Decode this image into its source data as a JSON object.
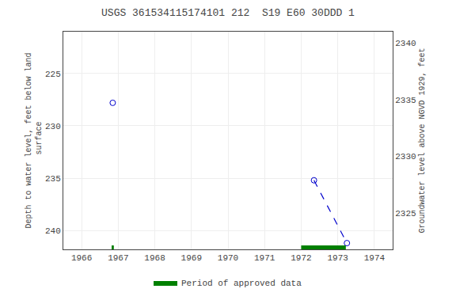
{
  "chart_data": {
    "type": "scatter",
    "title": "USGS 361534115174101 212  S19 E60 30DDD 1",
    "y_label": "Depth to water level, feet below land\n surface",
    "y2_label": "Groundwater level above NGVD 1929, feet",
    "xlim": [
      1965.5,
      1974.5
    ],
    "xticks": [
      1966,
      1967,
      1968,
      1969,
      1970,
      1971,
      1972,
      1973,
      1974
    ],
    "ylim": [
      241.8,
      221.0
    ],
    "yticks": [
      225,
      230,
      235,
      240
    ],
    "y2lim": [
      2321.8,
      2341.0
    ],
    "y2ticks": [
      2340,
      2335,
      2330,
      2325
    ],
    "grid": true,
    "legend": "bottom",
    "series": [
      {
        "type": "scatter",
        "marker": "open_circle",
        "color": "#0000cc",
        "x": [
          1966.85,
          1972.35,
          1973.25
        ],
        "values": [
          227.8,
          235.2,
          241.2
        ]
      },
      {
        "type": "line",
        "line_style": "dashed",
        "color": "#0000cc",
        "x": [
          1972.35,
          1973.25
        ],
        "values": [
          235.2,
          241.2
        ]
      },
      {
        "type": "span",
        "name": "Period of approved data",
        "color": "#008000",
        "x_start": [
          1966.82,
          1972.0
        ],
        "x_end": [
          1966.88,
          1973.22
        ]
      }
    ]
  }
}
